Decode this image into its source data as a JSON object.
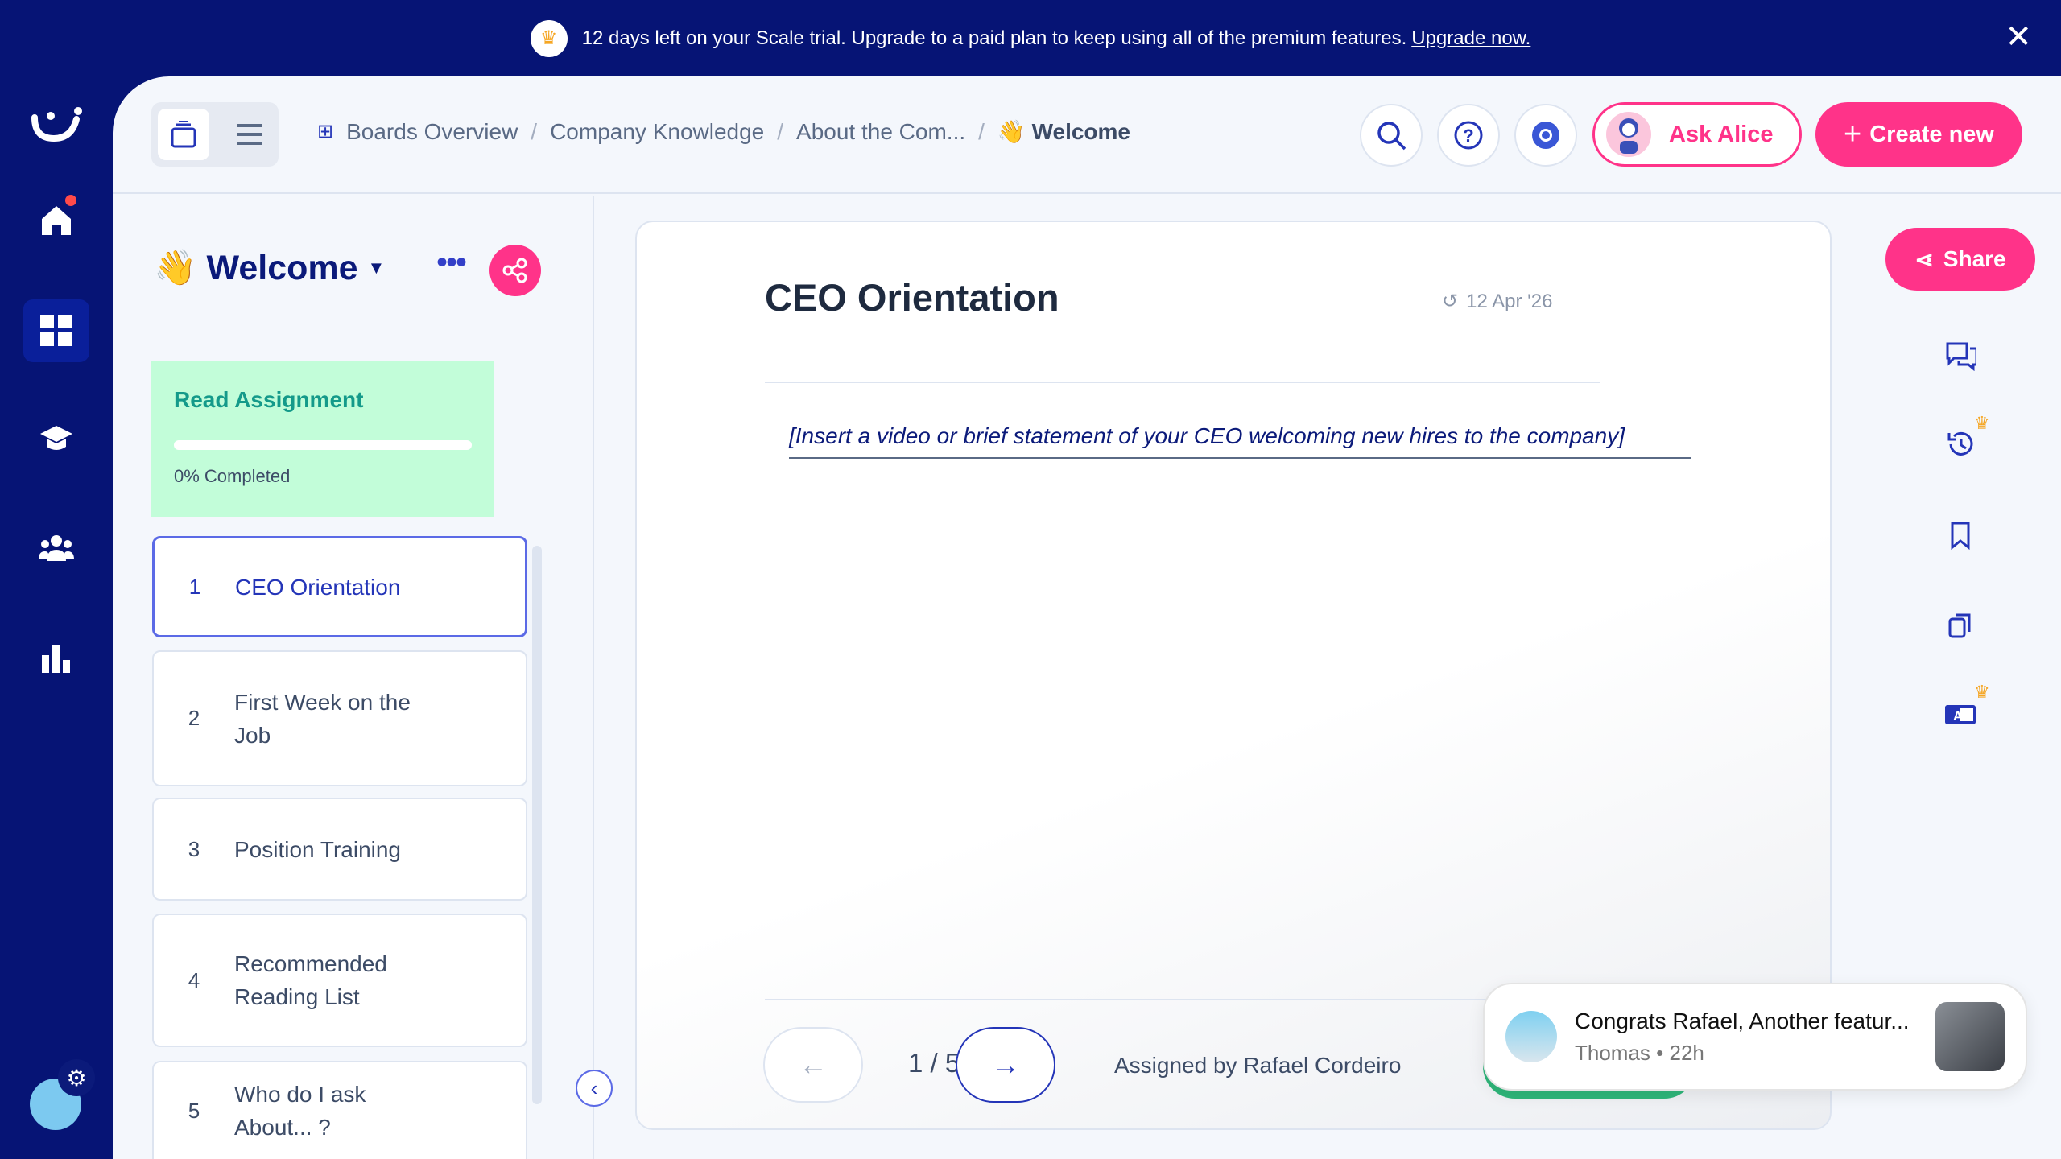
{
  "banner": {
    "message": "12 days left on your Scale trial. Upgrade to a paid plan to keep using all of the premium features.",
    "link": "Upgrade now.",
    "close_icon": "close-icon"
  },
  "nav": {
    "items": [
      "home",
      "boards",
      "academy",
      "people",
      "analytics"
    ],
    "active": "boards",
    "notification_dot_color": "#ff4a4a"
  },
  "header": {
    "breadcrumb": [
      "Boards Overview",
      "Company Knowledge",
      "About the Com..."
    ],
    "current": "Welcome",
    "current_emoji": "👋",
    "ask_alice": "Ask Alice",
    "create_new": "Create new",
    "create_icon": "+"
  },
  "left": {
    "title": "Welcome",
    "title_emoji": "👋",
    "assignment": {
      "title": "Read Assignment",
      "progress_percent": 0,
      "progress_label": "0% Completed"
    },
    "items": [
      {
        "n": "1",
        "label": "CEO Orientation",
        "active": true
      },
      {
        "n": "2",
        "label": "First Week on the Job"
      },
      {
        "n": "3",
        "label": "Position Training"
      },
      {
        "n": "4",
        "label": "Recommended Reading List"
      },
      {
        "n": "5",
        "label": "Who do I ask About... ?"
      }
    ]
  },
  "card": {
    "title": "CEO Orientation",
    "date": "12 Apr '26",
    "body": "[Insert a video or brief statement of your CEO welcoming new hires to the company]",
    "page": "1 / 5",
    "assigned": "Assigned by Rafael Cordeiro"
  },
  "right": {
    "share": "Share"
  },
  "toast": {
    "message": "Congrats Rafael, Another featur...",
    "author": "Thomas",
    "time": "22h",
    "sep": "•"
  },
  "colors": {
    "navy": "#061475",
    "pink": "#ff3389",
    "green": "#c2fdd9",
    "teal": "#149a8a"
  }
}
